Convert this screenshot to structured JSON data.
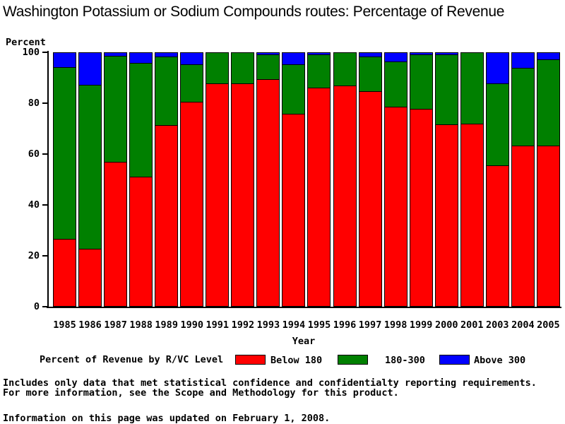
{
  "title": "Washington Potassium or Sodium Compounds routes: Percentage of Revenue",
  "chart_data": {
    "type": "bar",
    "stacked": true,
    "title": "Washington Potassium or Sodium Compounds routes: Percentage of Revenue",
    "xlabel": "Year",
    "ylabel": "Percent",
    "ylim": [
      0,
      100
    ],
    "yticks": [
      0,
      20,
      40,
      60,
      80,
      100
    ],
    "grid": false,
    "legend_position": "bottom",
    "categories": [
      "1985",
      "1986",
      "1987",
      "1988",
      "1989",
      "1990",
      "1991",
      "1992",
      "1993",
      "1994",
      "1995",
      "1996",
      "1997",
      "1998",
      "1999",
      "2000",
      "2001",
      "2003",
      "2004",
      "2005"
    ],
    "series": [
      {
        "name": "Below 180",
        "color": "#ff0000",
        "values": [
          26.5,
          22.5,
          57,
          51,
          71.5,
          81,
          88,
          88,
          90,
          76,
          86.5,
          87,
          85,
          79,
          78,
          72,
          72,
          55.5,
          63.5,
          63.5
        ]
      },
      {
        "name": "180-300",
        "color": "#008000",
        "values": [
          68,
          65,
          42,
          45,
          27,
          14.5,
          12,
          12,
          9.5,
          19.5,
          13,
          13,
          13.5,
          17.5,
          21.5,
          27.5,
          28,
          32.5,
          30.5,
          34
        ]
      },
      {
        "name": "Above 300",
        "color": "#0000ff",
        "values": [
          5.5,
          12.5,
          1,
          4,
          1.5,
          4.5,
          0,
          0,
          0.5,
          4.5,
          0.5,
          0,
          1.5,
          3.5,
          0.5,
          0.5,
          0,
          12,
          6,
          2.5
        ]
      }
    ]
  },
  "legend": {
    "title": "Percent of Revenue by R/VC Level",
    "items": [
      {
        "label": "Below 180",
        "color": "#ff0000"
      },
      {
        "label": "180-300",
        "color": "#008000"
      },
      {
        "label": "Above 300",
        "color": "#0000ff"
      }
    ]
  },
  "footnotes": [
    "Includes only data that met statistical confidence and confidentialty reporting requirements.",
    "For more information, see the Scope and Methodology for this product."
  ],
  "updated_note": "Information on this page was updated on February 1, 2008.",
  "colors": {
    "background": "#ffffff",
    "axis": "#000000",
    "below_180": "#ff0000",
    "mid_180_300": "#008000",
    "above_300": "#0000ff"
  }
}
